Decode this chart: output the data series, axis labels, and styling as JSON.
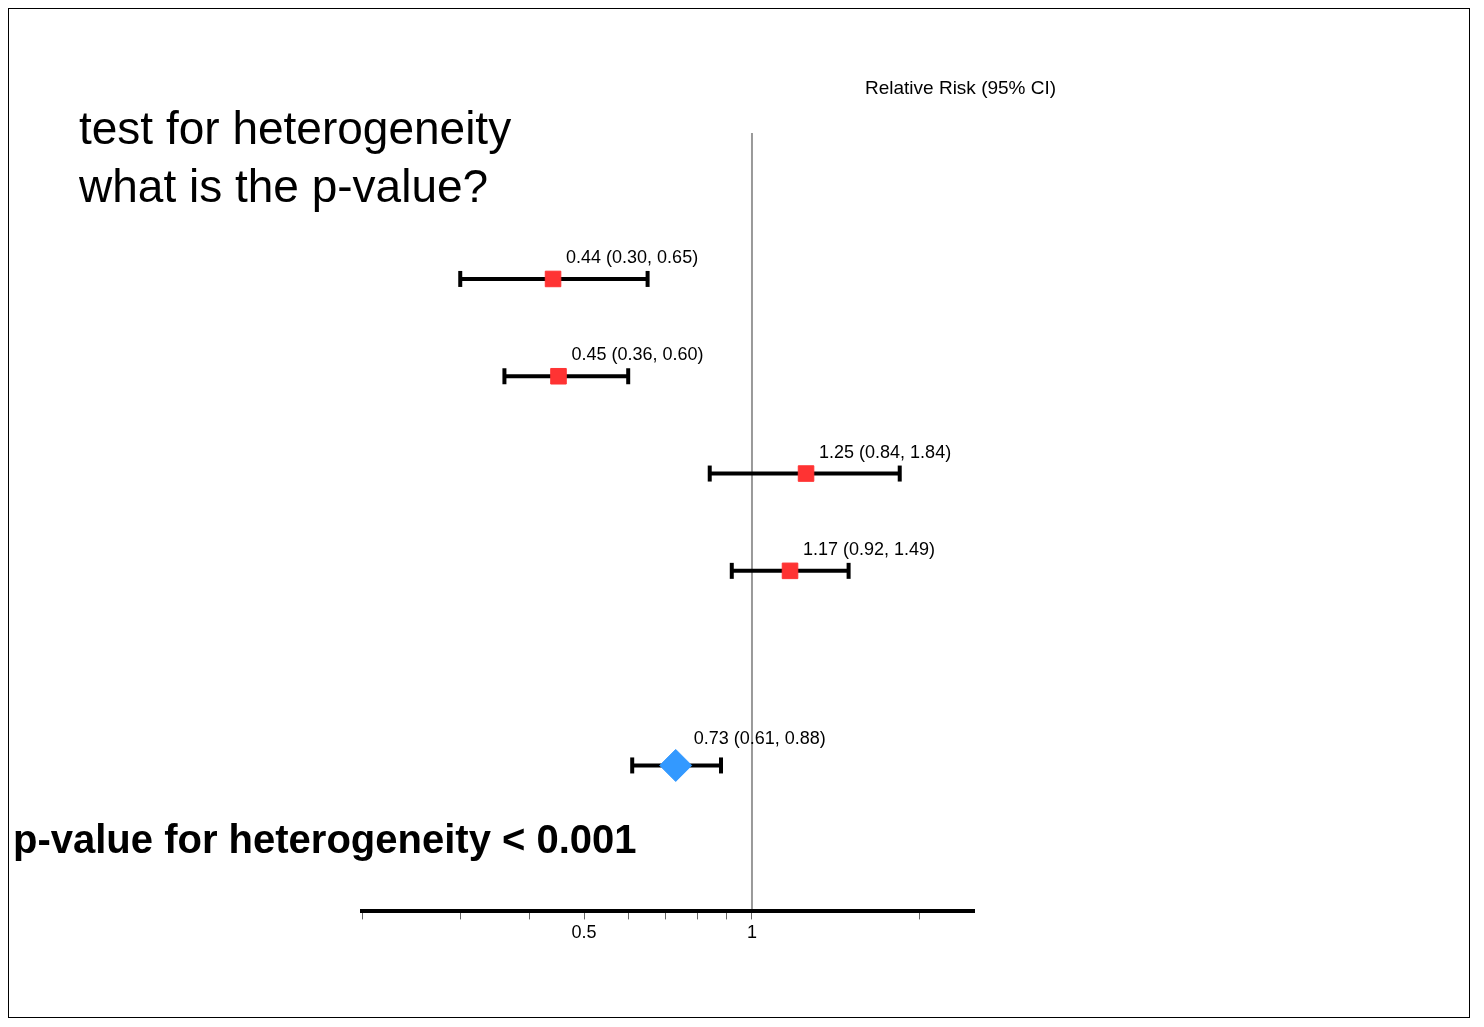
{
  "chart_data": {
    "type": "scatter",
    "orientation": "horizontal",
    "title": "test for heterogeneity",
    "subtitle": "what is the p-value?",
    "annotations": [
      "Relative Risk (95% CI)",
      "p-value for heterogeneity < 0.001"
    ],
    "categories": [
      null,
      null,
      null,
      null,
      null,
      null,
      null,
      null
    ],
    "series": [
      {
        "color": "#ff3333",
        "marker": "square",
        "values": [
          null,
          0.44,
          0.45,
          1.25,
          1.17,
          null,
          null,
          null
        ],
        "errors": [
          null,
          [
            0.3,
            0.65
          ],
          [
            0.36,
            0.6
          ],
          [
            0.84,
            1.84
          ],
          [
            0.92,
            1.49
          ],
          null,
          null,
          null
        ],
        "value_labels": [
          null,
          "0.44 (0.30, 0.65)",
          "0.45 (0.36, 0.60)",
          "1.25 (0.84, 1.84)",
          "1.17 (0.92, 1.49)",
          null,
          null,
          null
        ]
      },
      {
        "color": "#3399ff",
        "marker": "diamond",
        "values": [
          null,
          null,
          null,
          null,
          null,
          null,
          0.73,
          null
        ],
        "errors": [
          null,
          null,
          null,
          null,
          null,
          null,
          [
            0.61,
            0.88
          ],
          null
        ],
        "value_labels": [
          null,
          null,
          null,
          null,
          null,
          null,
          "0.73 (0.61, 0.88)",
          null
        ]
      }
    ],
    "log": "x",
    "xlim": [
      0.2,
      2.5
    ],
    "xticks": [
      {
        "value": 0.2,
        "label": null
      },
      {
        "value": 0.3,
        "label": null
      },
      {
        "value": 0.4,
        "label": null
      },
      0.5,
      {
        "value": 0.6,
        "label": null
      },
      {
        "value": 0.7,
        "label": null
      },
      {
        "value": 0.8,
        "label": null
      },
      {
        "value": 0.9,
        "label": null
      },
      1,
      {
        "value": 2,
        "label": null
      }
    ],
    "ref_lines": [
      {
        "axis": "x",
        "value": 1,
        "color": "#999999"
      }
    ],
    "tick_labels": "x"
  }
}
